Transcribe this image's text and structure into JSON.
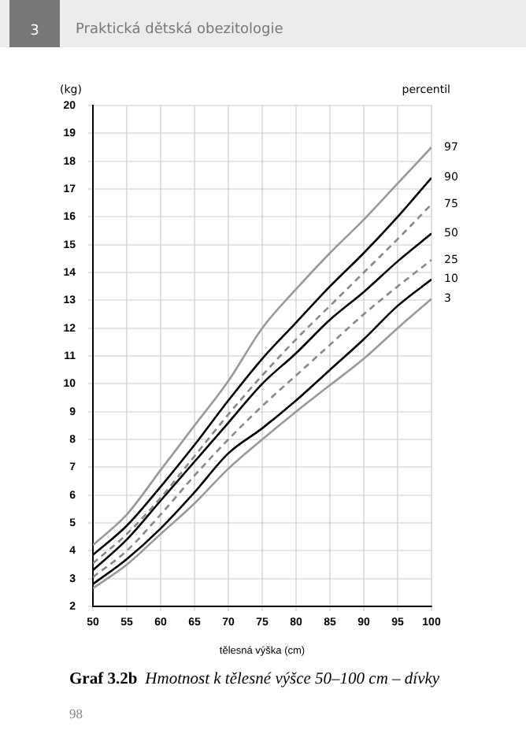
{
  "chart_data": {
    "type": "line",
    "title": "Hmotnost k tělesné výšce 50–100 cm – dívky",
    "xlabel": "tělesná výška (cm)",
    "ylabel": "(kg)",
    "legend_title": "percentil",
    "annotations": [
      "3",
      "Praktická dětská obezitologie",
      "Graf 3.2b",
      "98"
    ],
    "x": [
      50,
      55,
      60,
      65,
      70,
      75,
      80,
      85,
      90,
      95,
      100
    ],
    "xlim": [
      50,
      100
    ],
    "xticks": [
      50,
      55,
      60,
      65,
      70,
      75,
      80,
      85,
      90,
      95,
      100
    ],
    "ylim": [
      2,
      20
    ],
    "yticks": [
      2,
      3,
      4,
      5,
      6,
      7,
      8,
      9,
      10,
      11,
      12,
      13,
      14,
      15,
      16,
      17,
      18,
      19,
      20
    ],
    "grid": true,
    "marker": "none",
    "series": [
      {
        "name": "97",
        "color": "#999999",
        "line_style": "solid",
        "values": [
          4.2,
          5.3,
          6.9,
          8.5,
          10.1,
          12.0,
          13.4,
          14.7,
          15.9,
          17.2,
          18.5
        ]
      },
      {
        "name": "90",
        "color": "#000000",
        "line_style": "solid",
        "values": [
          3.85,
          4.9,
          6.3,
          7.8,
          9.4,
          10.9,
          12.2,
          13.5,
          14.7,
          16.0,
          17.4
        ]
      },
      {
        "name": "75",
        "color": "#888888",
        "line_style": "dashed",
        "values": [
          3.55,
          4.6,
          5.9,
          7.4,
          8.9,
          10.3,
          11.6,
          12.8,
          14.0,
          15.2,
          16.45
        ]
      },
      {
        "name": "50",
        "color": "#000000",
        "line_style": "solid",
        "values": [
          3.3,
          4.4,
          5.8,
          7.2,
          8.6,
          10.0,
          11.1,
          12.3,
          13.3,
          14.4,
          15.4
        ]
      },
      {
        "name": "25",
        "color": "#888888",
        "line_style": "dashed",
        "values": [
          3.05,
          4.0,
          5.3,
          6.7,
          8.0,
          9.2,
          10.3,
          11.4,
          12.5,
          13.5,
          14.45
        ]
      },
      {
        "name": "10",
        "color": "#000000",
        "line_style": "solid",
        "values": [
          2.8,
          3.7,
          4.8,
          6.1,
          7.5,
          8.4,
          9.4,
          10.5,
          11.6,
          12.8,
          13.75
        ]
      },
      {
        "name": "3",
        "color": "#999999",
        "line_style": "solid",
        "values": [
          2.65,
          3.5,
          4.6,
          5.7,
          6.95,
          8.0,
          9.0,
          9.95,
          10.9,
          12.0,
          13.05
        ]
      }
    ]
  }
}
